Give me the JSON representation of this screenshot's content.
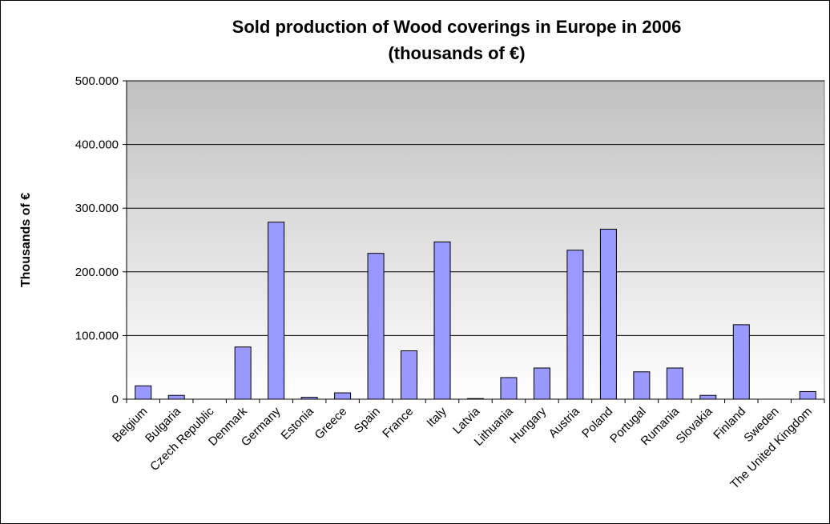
{
  "chart_data": {
    "type": "bar",
    "title": "Sold production of Wood coverings in Europe in 2006",
    "subtitle": "(thousands of €)",
    "xlabel": "",
    "ylabel": "Thousands of €",
    "ylim": [
      0,
      500000
    ],
    "yticks": [
      0,
      100000,
      200000,
      300000,
      400000,
      500000
    ],
    "ytick_labels": [
      "0",
      "100.000",
      "200.000",
      "300.000",
      "400.000",
      "500.000"
    ],
    "grid": true,
    "legend": "none",
    "categories": [
      "Belgium",
      "Bulgaria",
      "Czech Republic",
      "Denmark",
      "Germany",
      "Estonia",
      "Greece",
      "Spain",
      "France",
      "Italy",
      "Latvia",
      "Lithuania",
      "Hungary",
      "Austria",
      "Poland",
      "Portugal",
      "Rumania",
      "Slovakia",
      "Finland",
      "Sweden",
      "The United Kingdom"
    ],
    "values": [
      21000,
      6000,
      0,
      82000,
      278000,
      3000,
      10000,
      229000,
      76000,
      247000,
      1000,
      34000,
      49000,
      234000,
      267000,
      43000,
      49000,
      6000,
      117000,
      0,
      12000
    ],
    "colors": {
      "bar_fill": "#9999ff",
      "bar_stroke": "#000000",
      "plot_bg_top": "#c0c0c0",
      "plot_bg_bottom": "#ffffff",
      "grid": "#000000"
    }
  }
}
